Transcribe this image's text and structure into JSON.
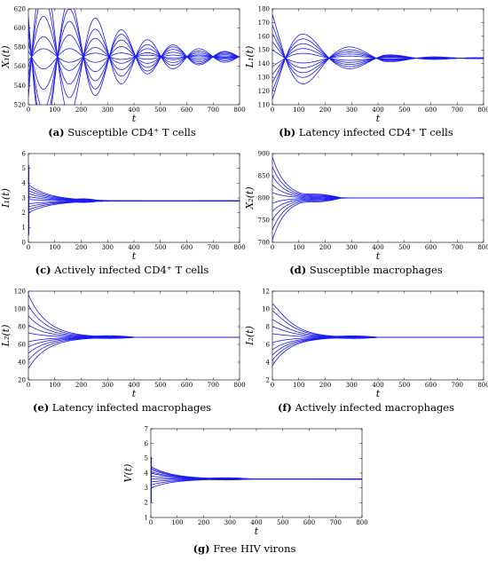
{
  "chart_data": [
    {
      "id": "a",
      "type": "line",
      "caption_tag": "(a)",
      "caption_text": "Susceptible CD4⁺ T cells",
      "ylabel": "X₁(t)",
      "xlabel": "t",
      "xlim": [
        0,
        800
      ],
      "ylim": [
        520,
        620
      ],
      "xticks": [
        0,
        100,
        200,
        300,
        400,
        500,
        600,
        700,
        800
      ],
      "yticks": [
        520,
        540,
        560,
        580,
        600,
        620
      ],
      "grid": false,
      "line_color": "#1a1aee",
      "curves": {
        "steady_state": 570,
        "initial_values": [
          528,
          540,
          550,
          560,
          566,
          576,
          586,
          596,
          605,
          612
        ],
        "decay": 0.004,
        "omega": 0.032,
        "crossing_t": 12,
        "settle_t": 290,
        "phase": 0.0,
        "ripple_amp": 1.2,
        "ripple_start": 300,
        "ripple_end": 480
      }
    },
    {
      "id": "b",
      "type": "line",
      "caption_tag": "(b)",
      "caption_text": "Latency infected CD4⁺ T cells",
      "ylabel": "L₁(t)",
      "xlabel": "t",
      "xlim": [
        0,
        800
      ],
      "ylim": [
        110,
        180
      ],
      "xticks": [
        0,
        100,
        200,
        300,
        400,
        500,
        600,
        700,
        800
      ],
      "yticks": [
        110,
        120,
        130,
        140,
        150,
        160,
        170,
        180
      ],
      "grid": false,
      "line_color": "#1a1aee",
      "curves": {
        "steady_state": 144,
        "initial_values": [
          114,
          120,
          126,
          132,
          138,
          150,
          156,
          162,
          168,
          176
        ],
        "decay": 0.006,
        "omega": 0.019,
        "crossing_t": 215,
        "settle_t": 400,
        "phase": 0.0,
        "ripple_amp": 2.0,
        "ripple_start": 250,
        "ripple_end": 420
      }
    },
    {
      "id": "c",
      "type": "line",
      "caption_tag": "(c)",
      "caption_text": "Actively infected CD4⁺ T cells",
      "ylabel": "I₁(t)",
      "xlabel": "t",
      "xlim": [
        0,
        800
      ],
      "ylim": [
        0,
        6
      ],
      "xticks": [
        0,
        100,
        200,
        300,
        400,
        500,
        600,
        700,
        800
      ],
      "yticks": [
        0,
        1,
        2,
        3,
        4,
        5,
        6
      ],
      "grid": false,
      "line_color": "#1a1aee",
      "curves": {
        "steady_state": 2.8,
        "initial_values": [
          2.0,
          2.2,
          2.4,
          2.6,
          2.9,
          3.1,
          3.3,
          3.5,
          3.7,
          3.9
        ],
        "decay": 0.012,
        "omega": 0.0,
        "crossing_t": 0,
        "settle_t": 250,
        "phase": 0.0,
        "ripple_amp": 0.06,
        "ripple_start": 180,
        "ripple_end": 260,
        "spike": [
          0.5,
          5.2
        ]
      }
    },
    {
      "id": "d",
      "type": "line",
      "caption_tag": "(d)",
      "caption_text": "Susceptible macrophages",
      "ylabel": "X₂(t)",
      "xlabel": "t",
      "xlim": [
        0,
        800
      ],
      "ylim": [
        700,
        900
      ],
      "xticks": [
        0,
        100,
        200,
        300,
        400,
        500,
        600,
        700,
        800
      ],
      "yticks": [
        700,
        750,
        800,
        850,
        900
      ],
      "grid": false,
      "line_color": "#1a1aee",
      "curves": {
        "steady_state": 800,
        "initial_values": [
          705,
          728,
          750,
          770,
          788,
          812,
          830,
          850,
          870,
          892
        ],
        "decay": 0.02,
        "omega": 0.0,
        "crossing_t": 0,
        "settle_t": 300,
        "phase": 0.0,
        "ripple_amp": 6.0,
        "ripple_start": 110,
        "ripple_end": 260
      }
    },
    {
      "id": "e",
      "type": "line",
      "caption_tag": "(e)",
      "caption_text": "Latency infected macrophages",
      "ylabel": "L₂(t)",
      "xlabel": "t",
      "xlim": [
        0,
        800
      ],
      "ylim": [
        20,
        120
      ],
      "xticks": [
        0,
        100,
        200,
        300,
        400,
        500,
        600,
        700,
        800
      ],
      "yticks": [
        20,
        40,
        60,
        80,
        100,
        120
      ],
      "grid": false,
      "line_color": "#1a1aee",
      "curves": {
        "steady_state": 68,
        "initial_values": [
          33,
          42,
          50,
          57,
          63,
          73,
          82,
          92,
          104,
          116
        ],
        "decay": 0.014,
        "omega": 0.0,
        "crossing_t": 0,
        "settle_t": 330,
        "phase": 0.0,
        "ripple_amp": 1.2,
        "ripple_start": 250,
        "ripple_end": 400
      }
    },
    {
      "id": "f",
      "type": "line",
      "caption_tag": "(f)",
      "caption_text": "Actively infected macrophages",
      "ylabel": "I₂(t)",
      "xlabel": "t",
      "xlim": [
        0,
        800
      ],
      "ylim": [
        2,
        12
      ],
      "xticks": [
        0,
        100,
        200,
        300,
        400,
        500,
        600,
        700,
        800
      ],
      "yticks": [
        2,
        4,
        6,
        8,
        10,
        12
      ],
      "grid": false,
      "line_color": "#1a1aee",
      "curves": {
        "steady_state": 6.8,
        "initial_values": [
          3.6,
          4.2,
          4.8,
          5.4,
          6.2,
          7.2,
          8.0,
          8.8,
          9.8,
          10.6
        ],
        "decay": 0.015,
        "omega": 0.0,
        "crossing_t": 0,
        "settle_t": 330,
        "phase": 0.0,
        "ripple_amp": 0.12,
        "ripple_start": 240,
        "ripple_end": 400,
        "hump": 0.5
      }
    },
    {
      "id": "g",
      "type": "line",
      "caption_tag": "(g)",
      "caption_text": "Free HIV virons",
      "ylabel": "V(t)",
      "xlabel": "t",
      "xlim": [
        0,
        800
      ],
      "ylim": [
        1,
        7
      ],
      "xticks": [
        0,
        100,
        200,
        300,
        400,
        500,
        600,
        700,
        800
      ],
      "yticks": [
        1,
        2,
        3,
        4,
        5,
        6,
        7
      ],
      "grid": false,
      "line_color": "#1a1aee",
      "curves": {
        "steady_state": 3.6,
        "initial_values": [
          3.0,
          3.2,
          3.4,
          3.6,
          3.8,
          4.0,
          4.1,
          4.25,
          4.35,
          4.45
        ],
        "decay": 0.012,
        "omega": 0.0,
        "crossing_t": 0,
        "settle_t": 260,
        "phase": 0.0,
        "ripple_amp": 0.06,
        "ripple_start": 220,
        "ripple_end": 380,
        "spike": [
          2.0,
          5.1
        ]
      }
    }
  ]
}
